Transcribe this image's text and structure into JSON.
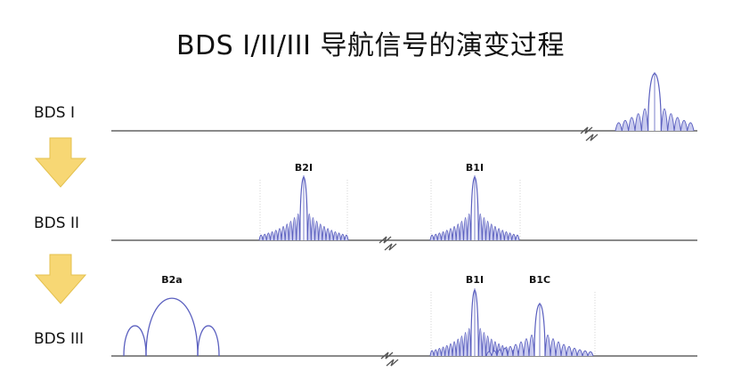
{
  "title": "BDS I/II/III 导航信号的演变过程",
  "rows": [
    {
      "label": "BDS I",
      "signals": []
    },
    {
      "label": "BDS II",
      "signals": [
        "B2I",
        "B1I"
      ]
    },
    {
      "label": "BDS III",
      "signals": [
        "B2a",
        "B1I",
        "B1C"
      ]
    }
  ],
  "colors": {
    "signal": "#5a5fbf",
    "fill": "#c9cbef",
    "arrow": "#f7d774",
    "arrow_edge": "#e4c14e",
    "axis": "#444444"
  },
  "icons": [
    "down-arrow-icon",
    "axis-break-icon"
  ]
}
